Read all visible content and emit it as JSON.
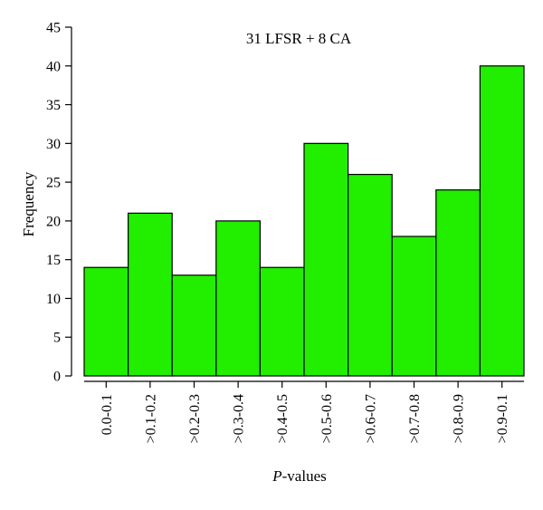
{
  "chart_data": {
    "type": "bar",
    "title": "31 LFSR + 8 CA",
    "xlabel_prefix": "P",
    "xlabel_suffix": "-values",
    "ylabel": "Frequency",
    "categories": [
      "0.0-0.1",
      ">0.1-0.2",
      ">0.2-0.3",
      ">0.3-0.4",
      ">0.4-0.5",
      ">0.5-0.6",
      ">0.6-0.7",
      ">0.7-0.8",
      ">0.8-0.9",
      ">0.9-0.1"
    ],
    "values": [
      14,
      21,
      13,
      20,
      14,
      30,
      26,
      18,
      24,
      40
    ],
    "ylim": [
      0,
      45
    ],
    "yticks": [
      0,
      5,
      10,
      15,
      20,
      25,
      30,
      35,
      40,
      45
    ],
    "bar_color": "#22ee00",
    "edge_color": "#000000",
    "grid": false,
    "legend": "none"
  }
}
